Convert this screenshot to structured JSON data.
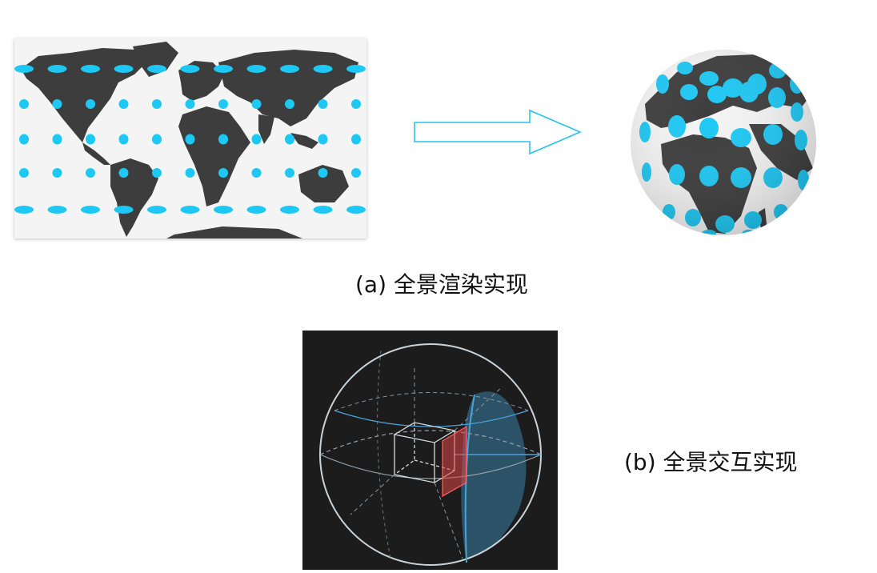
{
  "figure": {
    "caption_a": "(a) 全景渲染实现",
    "caption_b": "(b) 全景交互实现"
  },
  "colors": {
    "land": "#3d3d3d",
    "ocean": "#f4f4f4",
    "dot": "#1ec8f4",
    "arrow": "#27c3ee",
    "sphere_bg": "#1c1c1c",
    "sphere_line": "#c9d3da",
    "sphere_blue": "#4aa3d8",
    "plane_red": "#e04545"
  },
  "icons": {
    "map": "equirectangular-world-map-icon",
    "arrow": "right-arrow-icon",
    "globe": "globe-icon",
    "sphere": "panorama-sphere-icon"
  }
}
